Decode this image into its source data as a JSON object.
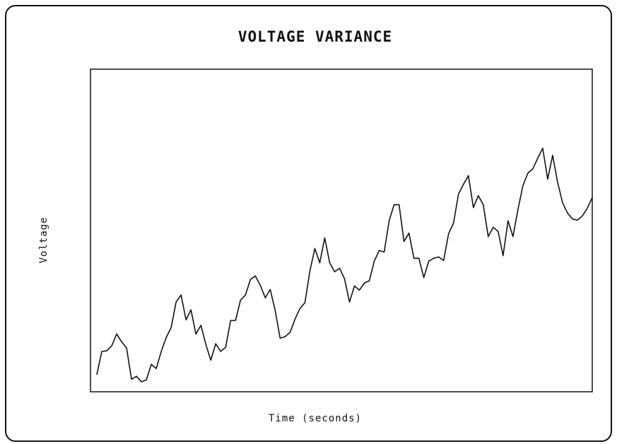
{
  "chart_data": {
    "type": "line",
    "title": "VOLTAGE VARIANCE",
    "x_label": "Time (seconds)",
    "y_label": "Voltage",
    "color": "#111111",
    "grid": false,
    "ylim": [
      0,
      100
    ],
    "values": [
      5.3,
      12.5,
      12.7,
      14.2,
      17.9,
      15.5,
      13.6,
      3.9,
      4.8,
      3.1,
      3.7,
      8.5,
      7.2,
      12.5,
      16.8,
      19.9,
      27.8,
      30.0,
      22.3,
      25.4,
      17.9,
      20.6,
      14.7,
      9.8,
      14.9,
      12.5,
      13.8,
      22.1,
      22.1,
      28.4,
      30.0,
      34.8,
      35.9,
      33.0,
      29.1,
      31.7,
      25.2,
      16.6,
      17.1,
      18.4,
      22.5,
      25.8,
      27.6,
      37.4,
      44.4,
      40.0,
      47.7,
      40.0,
      37.2,
      38.3,
      35.0,
      27.8,
      32.8,
      31.5,
      33.7,
      34.4,
      40.5,
      43.8,
      43.3,
      53.0,
      58.0,
      58.0,
      46.6,
      49.2,
      41.4,
      41.4,
      35.4,
      40.5,
      41.4,
      41.8,
      40.7,
      49.0,
      52.3,
      61.3,
      64.3,
      67.0,
      57.1,
      60.8,
      58.0,
      48.1,
      51.0,
      49.7,
      42.2,
      53.0,
      48.1,
      56.5,
      63.9,
      67.8,
      69.1,
      72.4,
      75.5,
      65.9,
      73.3,
      65.0,
      58.6,
      55.4,
      53.6,
      53.2,
      54.5,
      56.9,
      60.2
    ]
  }
}
